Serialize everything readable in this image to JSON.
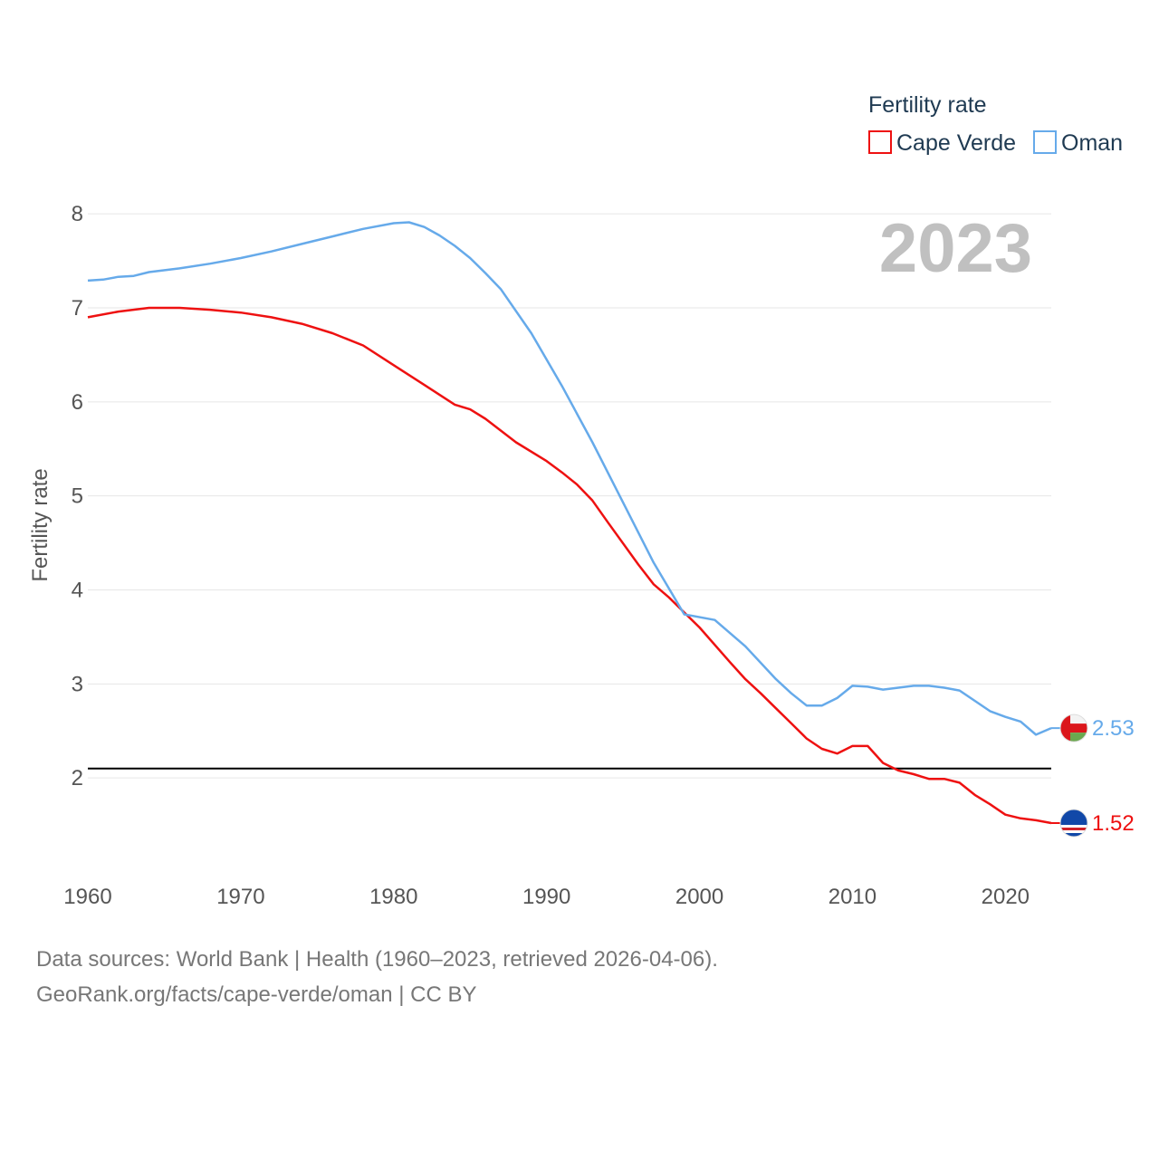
{
  "chart_data": {
    "type": "line",
    "legend_title": "Fertility rate",
    "ylabel": "Fertility rate",
    "xlabel": "",
    "year_label": "2023",
    "xlim": [
      1960,
      2023
    ],
    "ylim": [
      1.0,
      8.3
    ],
    "x_ticks": [
      1960,
      1970,
      1980,
      1990,
      2000,
      2010,
      2020
    ],
    "y_ticks": [
      2,
      3,
      4,
      5,
      6,
      7,
      8
    ],
    "reference_line": {
      "y": 2.1
    },
    "legend_placement": "top-right",
    "series": [
      {
        "name": "Cape Verde",
        "color": "#ee1111",
        "end_label": "1.52",
        "flag": "cape-verde-flag-icon",
        "x": [
          1960,
          1962,
          1964,
          1966,
          1968,
          1970,
          1972,
          1974,
          1976,
          1978,
          1980,
          1982,
          1984,
          1985,
          1986,
          1988,
          1990,
          1991,
          1992,
          1993,
          1994,
          1996,
          1997,
          1998,
          2000,
          2002,
          2003,
          2004,
          2005,
          2006,
          2007,
          2008,
          2009,
          2010,
          2011,
          2012,
          2013,
          2014,
          2015,
          2016,
          2017,
          2018,
          2019,
          2020,
          2021,
          2022,
          2023
        ],
        "values": [
          6.9,
          6.96,
          7.0,
          7.0,
          6.98,
          6.95,
          6.9,
          6.83,
          6.73,
          6.6,
          6.39,
          6.18,
          5.97,
          5.92,
          5.82,
          5.57,
          5.37,
          5.25,
          5.12,
          4.95,
          4.72,
          4.27,
          4.06,
          3.92,
          3.6,
          3.23,
          3.05,
          2.9,
          2.74,
          2.58,
          2.42,
          2.31,
          2.26,
          2.34,
          2.34,
          2.16,
          2.08,
          2.04,
          1.99,
          1.99,
          1.95,
          1.82,
          1.72,
          1.61,
          1.57,
          1.55,
          1.52
        ]
      },
      {
        "name": "Oman",
        "color": "#66aaea",
        "end_label": "2.53",
        "flag": "oman-flag-icon",
        "x": [
          1960,
          1961,
          1962,
          1963,
          1964,
          1966,
          1968,
          1970,
          1972,
          1974,
          1976,
          1978,
          1980,
          1981,
          1982,
          1983,
          1984,
          1985,
          1986,
          1987,
          1989,
          1991,
          1993,
          1995,
          1997,
          1999,
          2001,
          2003,
          2005,
          2006,
          2007,
          2008,
          2009,
          2010,
          2011,
          2012,
          2013,
          2014,
          2015,
          2016,
          2017,
          2018,
          2019,
          2020,
          2021,
          2022,
          2023
        ],
        "values": [
          7.29,
          7.3,
          7.33,
          7.34,
          7.38,
          7.42,
          7.47,
          7.53,
          7.6,
          7.68,
          7.76,
          7.84,
          7.9,
          7.91,
          7.86,
          7.77,
          7.66,
          7.53,
          7.37,
          7.2,
          6.73,
          6.17,
          5.57,
          4.93,
          4.29,
          3.74,
          3.68,
          3.4,
          3.05,
          2.9,
          2.77,
          2.77,
          2.85,
          2.98,
          2.97,
          2.94,
          2.96,
          2.98,
          2.98,
          2.96,
          2.93,
          2.82,
          2.71,
          2.65,
          2.6,
          2.46,
          2.53
        ]
      }
    ]
  },
  "footer": {
    "source_line": "Data sources: World Bank | Health (1960–2023, retrieved 2026-04-06).",
    "credit_line": "GeoRank.org/facts/cape-verde/oman | CC BY"
  }
}
